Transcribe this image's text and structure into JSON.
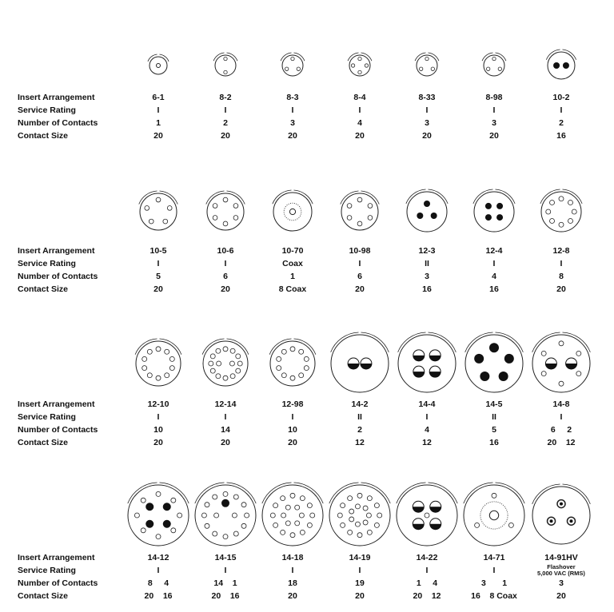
{
  "row_labels": [
    "Insert Arrangement",
    "Service Rating",
    "Number of Contacts",
    "Contact Size"
  ],
  "rows": [
    {
      "items": [
        {
          "arrangement": "6-1",
          "rating": "I",
          "contacts": "1",
          "size": "20"
        },
        {
          "arrangement": "8-2",
          "rating": "I",
          "contacts": "2",
          "size": "20"
        },
        {
          "arrangement": "8-3",
          "rating": "I",
          "contacts": "3",
          "size": "20"
        },
        {
          "arrangement": "8-4",
          "rating": "I",
          "contacts": "4",
          "size": "20"
        },
        {
          "arrangement": "8-33",
          "rating": "I",
          "contacts": "3",
          "size": "20"
        },
        {
          "arrangement": "8-98",
          "rating": "I",
          "contacts": "3",
          "size": "20"
        },
        {
          "arrangement": "10-2",
          "rating": "I",
          "contacts": "2",
          "size": "16"
        }
      ]
    },
    {
      "items": [
        {
          "arrangement": "10-5",
          "rating": "I",
          "contacts": "5",
          "size": "20"
        },
        {
          "arrangement": "10-6",
          "rating": "I",
          "contacts": "6",
          "size": "20"
        },
        {
          "arrangement": "10-70",
          "rating": "Coax",
          "contacts": "1",
          "size": "8 Coax"
        },
        {
          "arrangement": "10-98",
          "rating": "I",
          "contacts": "6",
          "size": "20"
        },
        {
          "arrangement": "12-3",
          "rating": "II",
          "contacts": "3",
          "size": "16"
        },
        {
          "arrangement": "12-4",
          "rating": "I",
          "contacts": "4",
          "size": "16"
        },
        {
          "arrangement": "12-8",
          "rating": "I",
          "contacts": "8",
          "size": "20"
        }
      ]
    },
    {
      "items": [
        {
          "arrangement": "12-10",
          "rating": "I",
          "contacts": "10",
          "size": "20"
        },
        {
          "arrangement": "12-14",
          "rating": "I",
          "contacts": "14",
          "size": "20"
        },
        {
          "arrangement": "12-98",
          "rating": "I",
          "contacts": "10",
          "size": "20"
        },
        {
          "arrangement": "14-2",
          "rating": "II",
          "contacts": "2",
          "size": "12"
        },
        {
          "arrangement": "14-4",
          "rating": "I",
          "contacts": "4",
          "size": "12"
        },
        {
          "arrangement": "14-5",
          "rating": "II",
          "contacts": "5",
          "size": "16"
        },
        {
          "arrangement": "14-8",
          "rating": "I",
          "contacts": "6     2",
          "size": "20    12"
        }
      ]
    },
    {
      "items": [
        {
          "arrangement": "14-12",
          "rating": "I",
          "contacts": "8     4",
          "size": "20    16"
        },
        {
          "arrangement": "14-15",
          "rating": "I",
          "contacts": "14    1",
          "size": "20    16"
        },
        {
          "arrangement": "14-18",
          "rating": "I",
          "contacts": "18",
          "size": "20"
        },
        {
          "arrangement": "14-19",
          "rating": "I",
          "contacts": "19",
          "size": "20"
        },
        {
          "arrangement": "14-22",
          "rating": "I",
          "contacts": "1     4",
          "size": "20    12"
        },
        {
          "arrangement": "14-71",
          "rating": "I",
          "contacts": "3       1",
          "size": "16    8 Coax"
        },
        {
          "arrangement": "14-91HV",
          "rating": "Flashover\n5,000 VAC (RMS)",
          "contacts": "3",
          "size": "20"
        }
      ]
    }
  ],
  "colors": {
    "text": "#111111",
    "letter_labels": "#3a5a9a"
  }
}
